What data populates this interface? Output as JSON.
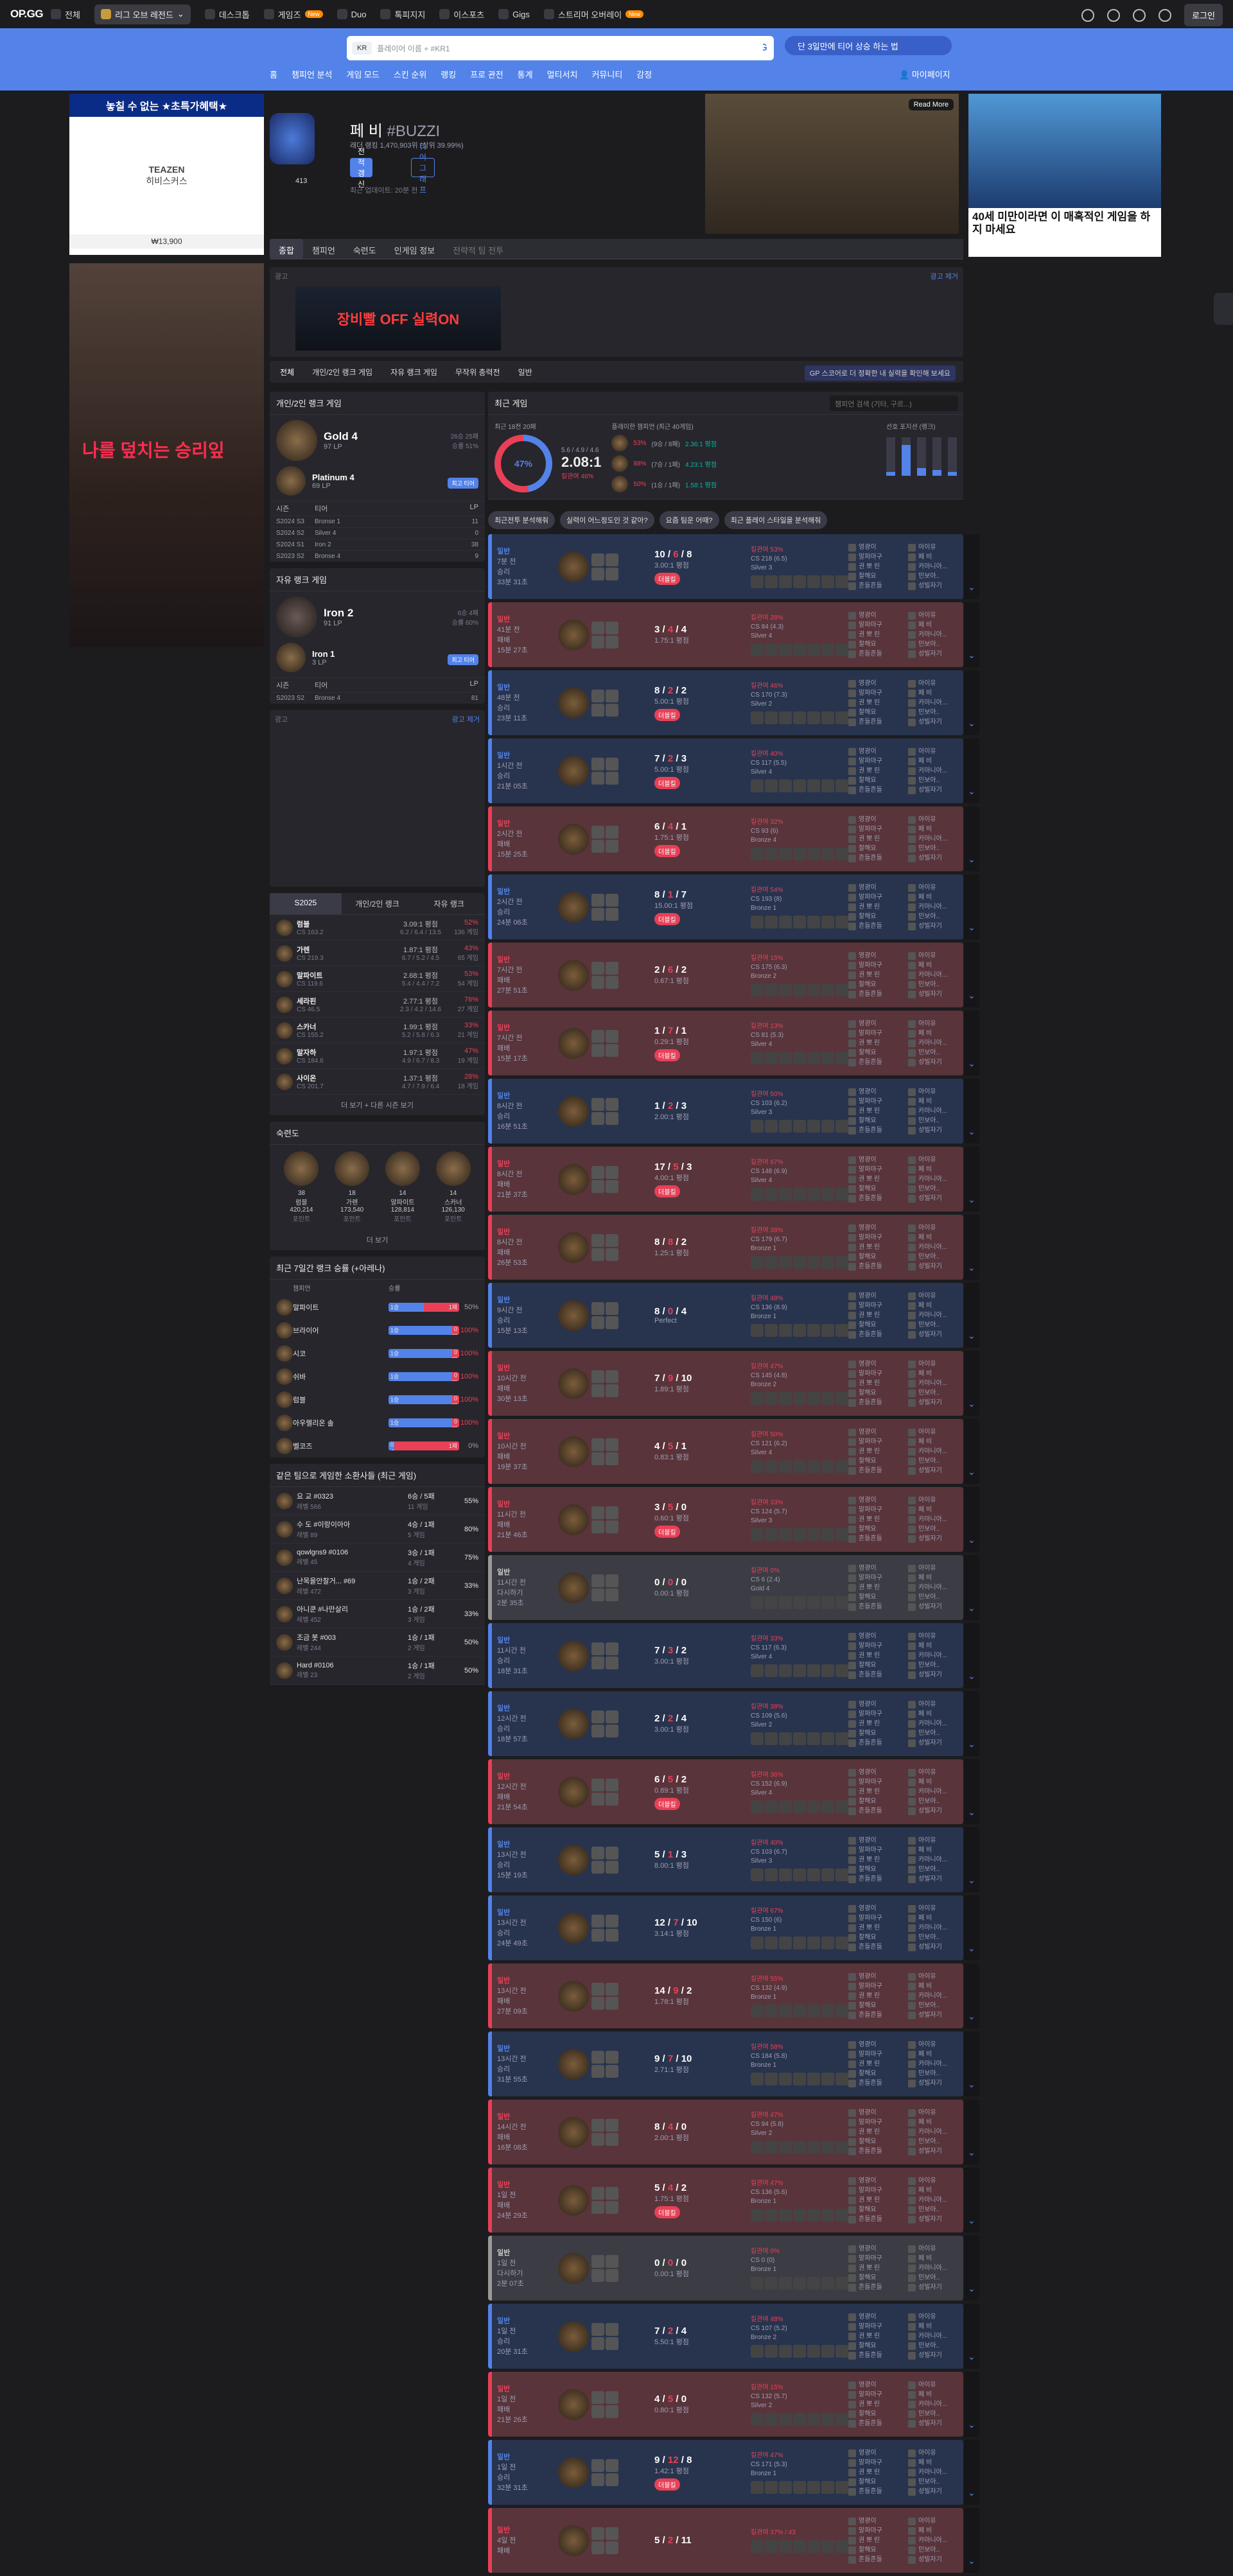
{
  "topbar": {
    "logo": "OP.GG",
    "nav": [
      "전체",
      "리그 오브 레전드",
      "데스크톱",
      "게임즈",
      "Duo",
      "톡피지지",
      "이스포츠",
      "Gigs",
      "스트리머 오버레이"
    ],
    "new_badge": "New",
    "login": "로그인"
  },
  "search": {
    "region": "KR",
    "placeholder": "플레이어 이름 + #KR1",
    "gg": ".GG",
    "promo": "단 3일만에 티어 상승 하는 법"
  },
  "subnav": [
    "홈",
    "챔피언 분석",
    "게임 모드",
    "스킨 순위",
    "랭킹",
    "프로 관전",
    "통계",
    "멀티서치",
    "커뮤니티",
    "감정"
  ],
  "mypage": "마이페이지",
  "ads": {
    "ad1_title": "놓칠 수 없는 ★초특가혜택★",
    "ad1_brand": "TEAZEN",
    "ad1_product": "히비스커스",
    "ad1_price": "₩13,900",
    "ad2_text": "나를 덮치는 승리잎",
    "ad3_more": "Read More",
    "ad4_text": "40세 미만이라면 이 매혹적인 게임을 하지 마세요",
    "strip_label": "광고",
    "strip_remove": "광고 제거",
    "strip_banner": "장비빨 OFF 실력ON"
  },
  "profile": {
    "name": "페 비",
    "tag": "#BUZZI",
    "level": "413",
    "ladder": "래더 랭킹 1,470,903위 (상위 39.99%)",
    "update": "전적 갱신",
    "tier_graph": "티어 그래프",
    "last_update": "최근 업데이트: 20분 전"
  },
  "tabs": [
    "종합",
    "챔피언",
    "숙련도",
    "인게임 정보",
    "전략적 팀 전투"
  ],
  "queue": {
    "items": [
      "전체",
      "개인/2인 랭크 게임",
      "자유 랭크 게임",
      "무작위 총력전",
      "일반"
    ],
    "tip": "GP 스코어로 더 정확한 내 실력을 확인해 보세요"
  },
  "solo": {
    "title": "개인/2인 랭크 게임",
    "tier": "Gold 4",
    "lp": "97 LP",
    "record": "26승 25패",
    "wr": "승률 51%",
    "peak_tier": "Platinum 4",
    "peak_lp": "69 LP",
    "peak_badge": "최고 티어",
    "season_head": [
      "시즌",
      "티어",
      "LP"
    ],
    "seasons": [
      [
        "S2024 S3",
        "Bronse 1",
        "11"
      ],
      [
        "S2024 S2",
        "Silver 4",
        "0"
      ],
      [
        "S2024 S1",
        "Iron 2",
        "38"
      ],
      [
        "S2023 S2",
        "Bronse 4",
        "9"
      ]
    ]
  },
  "flex": {
    "title": "자유 랭크 게임",
    "tier": "Iron 2",
    "lp": "91 LP",
    "record": "6승 4패",
    "wr": "승률 60%",
    "peak_tier": "Iron 1",
    "peak_lp": "3 LP",
    "peak_badge": "최고 티어",
    "seasons": [
      [
        "S2023 S2",
        "Bronse 4",
        "81"
      ]
    ]
  },
  "champs": {
    "tabs": [
      "S2025",
      "개인/2인 랭크",
      "자유 랭크"
    ],
    "rows": [
      [
        "럼블",
        "CS 163.2",
        "3.09:1 평점",
        "6.2 / 6.4 / 13.5",
        "52%",
        "136 게임"
      ],
      [
        "가렌",
        "CS 219.3",
        "1.87:1 평점",
        "6.7 / 5.2 / 4.5",
        "43%",
        "65 게임"
      ],
      [
        "말파이트",
        "CS 119.6",
        "2.68:1 평점",
        "5.4 / 4.4 / 7.2",
        "53%",
        "54 게임"
      ],
      [
        "세라핀",
        "CS 46.5",
        "2.77:1 평점",
        "2.3 / 4.2 / 14.6",
        "76%",
        "27 게임"
      ],
      [
        "스카너",
        "CS 155.2",
        "1.99:1 평점",
        "5.2 / 5.8 / 6.3",
        "33%",
        "21 게임"
      ],
      [
        "말자하",
        "CS 184.6",
        "1.97:1 평점",
        "4.9 / 6.7 / 8.3",
        "47%",
        "19 게임"
      ],
      [
        "사이온",
        "CS 201.7",
        "1.37:1 평점",
        "4.7 / 7.9 / 6.4",
        "28%",
        "18 게임"
      ]
    ],
    "more": "더 보기 + 다른 시즌 보기"
  },
  "mastery": {
    "title": "숙련도",
    "items": [
      [
        "38",
        "럼블",
        "420,214",
        "포인트"
      ],
      [
        "18",
        "가렌",
        "173,540",
        "포인트"
      ],
      [
        "14",
        "말파이트",
        "128,814",
        "포인트"
      ],
      [
        "14",
        "스카너",
        "126,130",
        "포인트"
      ]
    ],
    "more": "더 보기"
  },
  "recent7": {
    "title": "최근 7일간 랭크 승률 (+아레나)",
    "head": [
      "챔피언",
      "승률"
    ],
    "rows": [
      [
        "말파이트",
        "1승",
        "1패",
        "50%"
      ],
      [
        "브라이어",
        "1승",
        "0패",
        "100%"
      ],
      [
        "시코",
        "1승",
        "0패",
        "100%"
      ],
      [
        "쉬바",
        "1승",
        "0패",
        "100%"
      ],
      [
        "럼블",
        "1승",
        "0패",
        "100%"
      ],
      [
        "아우렐리온 솔",
        "1승",
        "0패",
        "100%"
      ],
      [
        "벨코즈",
        "0승",
        "1패",
        "0%"
      ]
    ]
  },
  "friends": {
    "title": "같은 팀으로 게임한 소환사들 (최근 게임)",
    "rows": [
      [
        "요 교 #0323",
        "레벨 566",
        "6승 / 5패",
        "11 게임",
        "55%"
      ],
      [
        "수 도 #이랑이아아",
        "레벨 89",
        "4승 / 1패",
        "5 게임",
        "80%"
      ],
      [
        "qowlgns9 #0106",
        "레벨 45",
        "3승 / 1패",
        "4 게임",
        "75%"
      ],
      [
        "난목을안찰거... #69",
        "레벨 472",
        "1승 / 2패",
        "3 게임",
        "33%"
      ],
      [
        "아니쿤 #나만살리",
        "레벨 452",
        "1승 / 2패",
        "3 게임",
        "33%"
      ],
      [
        "조금 봇 #003",
        "레벨 244",
        "1승 / 1패",
        "2 게임",
        "50%"
      ],
      [
        "Hard #0106",
        "레벨 23",
        "1승 / 1패",
        "2 게임",
        "50%"
      ]
    ]
  },
  "recent": {
    "title": "최근 게임",
    "search": "챔피언 검색 (기타, 구르...)",
    "summary_title": "최근 18전 20패",
    "wr": "47%",
    "kda_line": "5.6 / 4.9 / 4.6",
    "kda": "2.08:1",
    "kp": "킬관여 46%",
    "pref_title": "플레이한 챔피언 (최근 40게임)",
    "pos_title": "선호 포지션 (랭크)",
    "pref": [
      [
        "53%",
        "(9승 / 8패)",
        "2.36:1 평점"
      ],
      [
        "88%",
        "(7승 / 1패)",
        "4.23:1 평점"
      ],
      [
        "50%",
        "(1승 / 1패)",
        "1.58:1 평점"
      ]
    ],
    "buttons": [
      "최근전투 분석해줘",
      "실력이 어느정도인 것 같아?",
      "요즘 팀운 어때?",
      "최근 플레이 스타일을 분석해줘"
    ]
  },
  "games": [
    [
      "win",
      "일반",
      "7분 전",
      "승리",
      "33분 31초",
      "10 / 6 / 8",
      "3.00:1 평점",
      "킬관여 53%",
      "CS 218 (6.5)",
      "Silver 3"
    ],
    [
      "loss",
      "일반",
      "41분 전",
      "패배",
      "15분 27초",
      "3 / 4 / 4",
      "1.75:1 평점",
      "킬관여 28%",
      "CS 84 (4.3)",
      "Silver 4"
    ],
    [
      "win",
      "일반",
      "48분 전",
      "승리",
      "23분 11초",
      "8 / 2 / 2",
      "5.00:1 평점",
      "킬관여 46%",
      "CS 170 (7.3)",
      "Silver 2"
    ],
    [
      "win",
      "일반",
      "1시간 전",
      "승리",
      "21분 05초",
      "7 / 2 / 3",
      "5.00:1 평점",
      "킬관여 40%",
      "CS 117 (5.5)",
      "Silver 4"
    ],
    [
      "loss",
      "일반",
      "2시간 전",
      "패배",
      "15분 25초",
      "6 / 4 / 1",
      "1.75:1 평점",
      "킬관여 32%",
      "CS 93 (6)",
      "Bronze 4"
    ],
    [
      "win",
      "일반",
      "2시간 전",
      "승리",
      "24분 06초",
      "8 / 1 / 7",
      "15.00:1 평점",
      "킬관여 54%",
      "CS 193 (8)",
      "Bronze 1"
    ],
    [
      "loss",
      "일반",
      "7시간 전",
      "패배",
      "27분 51초",
      "2 / 6 / 2",
      "0.67:1 평점",
      "킬관여 15%",
      "CS 175 (6.3)",
      "Bronze 2"
    ],
    [
      "loss",
      "일반",
      "7시간 전",
      "패배",
      "15분 17초",
      "1 / 7 / 1",
      "0.29:1 평점",
      "킬관여 13%",
      "CS 81 (5.3)",
      "Silver 4"
    ],
    [
      "win",
      "일반",
      "8시간 전",
      "승리",
      "16분 51초",
      "1 / 2 / 3",
      "2.00:1 평점",
      "킬관여 50%",
      "CS 103 (6.2)",
      "Silver 3"
    ],
    [
      "loss",
      "일반",
      "8시간 전",
      "패배",
      "21분 37초",
      "17 / 5 / 3",
      "4.00:1 평점",
      "킬관여 67%",
      "CS 148 (6.9)",
      "Silver 4"
    ],
    [
      "loss",
      "일반",
      "8시간 전",
      "패배",
      "26분 53초",
      "8 / 8 / 2",
      "1.25:1 평점",
      "킬관여 38%",
      "CS 179 (6.7)",
      "Bronze 1"
    ],
    [
      "win",
      "일반",
      "9시간 전",
      "승리",
      "15분 13초",
      "8 / 0 / 4",
      "Perfect",
      "킬관여 48%",
      "CS 136 (8.9)",
      "Bronze 1"
    ],
    [
      "loss",
      "일반",
      "10시간 전",
      "패배",
      "30분 13초",
      "7 / 9 / 10",
      "1.89:1 평점",
      "킬관여 47%",
      "CS 145 (4.8)",
      "Bronze 2"
    ],
    [
      "loss",
      "일반",
      "10시간 전",
      "패배",
      "19분 37초",
      "4 / 5 / 1",
      "0.83:1 평점",
      "킬관여 50%",
      "CS 121 (6.2)",
      "Silver 4"
    ],
    [
      "loss",
      "일반",
      "11시간 전",
      "패배",
      "21분 46초",
      "3 / 5 / 0",
      "0.60:1 평점",
      "킬관여 33%",
      "CS 124 (5.7)",
      "Silver 3"
    ],
    [
      "remake",
      "일반",
      "11시간 전",
      "다시하기",
      "2분 35초",
      "0 / 0 / 0",
      "0.00:1 평점",
      "킬관여 0%",
      "CS 6 (2.4)",
      "Gold 4"
    ],
    [
      "win",
      "일반",
      "11시간 전",
      "승리",
      "18분 31초",
      "7 / 3 / 2",
      "3.00:1 평점",
      "킬관여 33%",
      "CS 117 (6.3)",
      "Silver 4"
    ],
    [
      "win",
      "일반",
      "12시간 전",
      "승리",
      "18분 57초",
      "2 / 2 / 4",
      "3.00:1 평점",
      "킬관여 38%",
      "CS 109 (5.6)",
      "Silver 2"
    ],
    [
      "loss",
      "일반",
      "12시간 전",
      "패배",
      "21분 54초",
      "6 / 5 / 2",
      "0.89:1 평점",
      "킬관여 36%",
      "CS 152 (6.9)",
      "Silver 4"
    ],
    [
      "win",
      "일반",
      "13시간 전",
      "승리",
      "15분 19초",
      "5 / 1 / 3",
      "8.00:1 평점",
      "킬관여 40%",
      "CS 103 (6.7)",
      "Silver 3"
    ],
    [
      "win",
      "일반",
      "13시간 전",
      "승리",
      "24분 49초",
      "12 / 7 / 10",
      "3.14:1 평점",
      "킬관여 67%",
      "CS 150 (6)",
      "Bronze 1"
    ],
    [
      "loss",
      "일반",
      "13시간 전",
      "패배",
      "27분 09초",
      "14 / 9 / 2",
      "1.78:1 평점",
      "킬관여 55%",
      "CS 132 (4.9)",
      "Bronze 1"
    ],
    [
      "win",
      "일반",
      "13시간 전",
      "승리",
      "31분 55초",
      "9 / 7 / 10",
      "2.71:1 평점",
      "킬관여 58%",
      "CS 184 (5.8)",
      "Bronze 1"
    ],
    [
      "loss",
      "일반",
      "14시간 전",
      "패배",
      "16분 08초",
      "8 / 4 / 0",
      "2.00:1 평점",
      "킬관여 47%",
      "CS 94 (5.8)",
      "Silver 2"
    ],
    [
      "loss",
      "일반",
      "1일 전",
      "패배",
      "24분 29초",
      "5 / 4 / 2",
      "1.75:1 평점",
      "킬관여 47%",
      "CS 136 (5.6)",
      "Bronze 1"
    ],
    [
      "remake",
      "일반",
      "1일 전",
      "다시하기",
      "2분 07초",
      "0 / 0 / 0",
      "0.00:1 평점",
      "킬관여 0%",
      "CS 0 (0)",
      "Bronze 1"
    ],
    [
      "win",
      "일반",
      "1일 전",
      "승리",
      "20분 31초",
      "7 / 2 / 4",
      "5.50:1 평점",
      "킬관여 48%",
      "CS 107 (5.2)",
      "Bronze 2"
    ],
    [
      "loss",
      "일반",
      "1일 전",
      "패배",
      "21분 26초",
      "4 / 5 / 0",
      "0.80:1 평점",
      "킬관여 15%",
      "CS 132 (5.7)",
      "Silver 2"
    ],
    [
      "win",
      "일반",
      "1일 전",
      "승리",
      "32분 31초",
      "9 / 12 / 8",
      "1.42:1 평점",
      "킬관여 47%",
      "CS 171 (5.3)",
      "Bronze 1"
    ],
    [
      "loss",
      "일반",
      "4일 전",
      "패배",
      "",
      "5 / 2 / 11",
      "",
      "킬관여 37% / 43",
      "",
      ""
    ]
  ],
  "players_left": [
    "영광이",
    "말파마구",
    "권 뽀 린",
    "찰해요",
    "흔들흔들"
  ],
  "players_right": [
    "아이유",
    "페 비",
    "카마니아...",
    "민보아..",
    "성빌자기"
  ]
}
